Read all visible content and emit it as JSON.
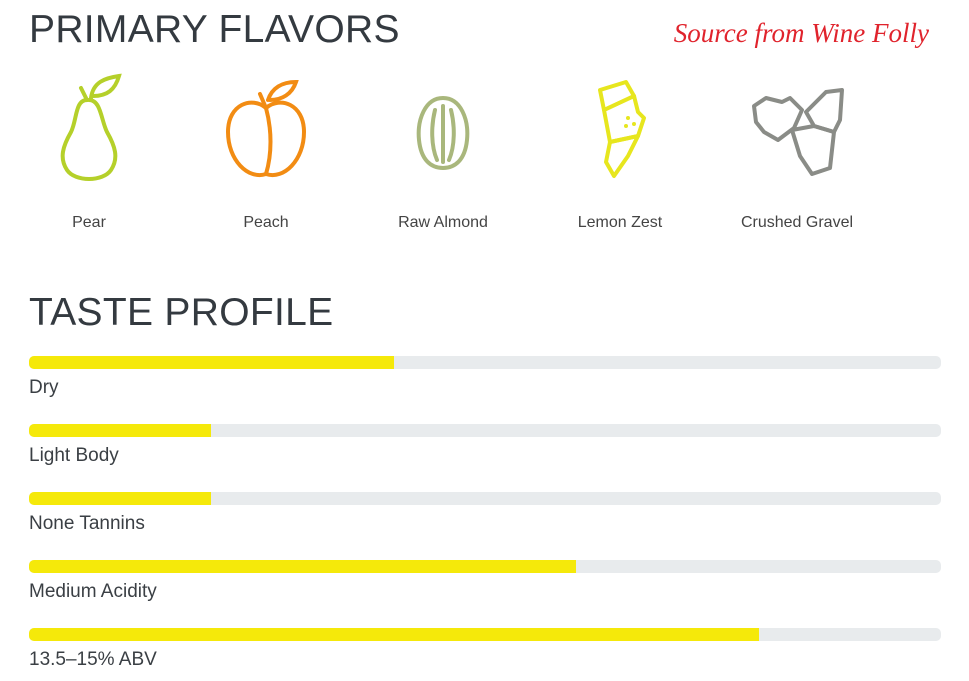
{
  "header": {
    "title": "PRIMARY FLAVORS",
    "source": "Source from Wine Folly"
  },
  "flavors": [
    {
      "label": "Pear"
    },
    {
      "label": "Peach"
    },
    {
      "label": "Raw Almond"
    },
    {
      "label": "Lemon Zest"
    },
    {
      "label": "Crushed Gravel"
    }
  ],
  "taste_profile": {
    "title": "TASTE PROFILE",
    "rows": [
      {
        "label": "Dry",
        "value": 0.4
      },
      {
        "label": "Light Body",
        "value": 0.2
      },
      {
        "label": "None Tannins",
        "value": 0.2
      },
      {
        "label": "Medium Acidity",
        "value": 0.6
      },
      {
        "label": "13.5–15% ABV",
        "value": 0.8
      }
    ]
  }
}
